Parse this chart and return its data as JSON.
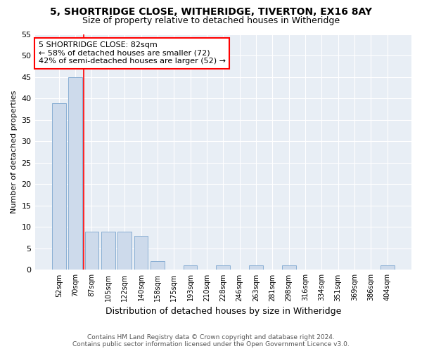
{
  "title_line1": "5, SHORTRIDGE CLOSE, WITHERIDGE, TIVERTON, EX16 8AY",
  "title_line2": "Size of property relative to detached houses in Witheridge",
  "xlabel": "Distribution of detached houses by size in Witheridge",
  "ylabel": "Number of detached properties",
  "bar_labels": [
    "52sqm",
    "70sqm",
    "87sqm",
    "105sqm",
    "122sqm",
    "140sqm",
    "158sqm",
    "175sqm",
    "193sqm",
    "210sqm",
    "228sqm",
    "246sqm",
    "263sqm",
    "281sqm",
    "298sqm",
    "316sqm",
    "334sqm",
    "351sqm",
    "369sqm",
    "386sqm",
    "404sqm"
  ],
  "bar_values": [
    39,
    45,
    9,
    9,
    9,
    8,
    2,
    0,
    1,
    0,
    1,
    0,
    1,
    0,
    1,
    0,
    0,
    0,
    0,
    0,
    1
  ],
  "bar_color": "#cddaeb",
  "bar_edge_color": "#8aafd4",
  "vline_x": 1.5,
  "vline_color": "red",
  "annotation_text": "5 SHORTRIDGE CLOSE: 82sqm\n← 58% of detached houses are smaller (72)\n42% of semi-detached houses are larger (52) →",
  "annotation_box_color": "white",
  "annotation_box_edge": "red",
  "ylim": [
    0,
    55
  ],
  "yticks": [
    0,
    5,
    10,
    15,
    20,
    25,
    30,
    35,
    40,
    45,
    50,
    55
  ],
  "footer_line1": "Contains HM Land Registry data © Crown copyright and database right 2024.",
  "footer_line2": "Contains public sector information licensed under the Open Government Licence v3.0.",
  "bg_color": "#ffffff",
  "plot_bg_color": "#e8eef5",
  "grid_color": "#ffffff",
  "title1_fontsize": 10,
  "title2_fontsize": 9,
  "annotation_fontsize": 8,
  "ylabel_fontsize": 8,
  "xlabel_fontsize": 9
}
